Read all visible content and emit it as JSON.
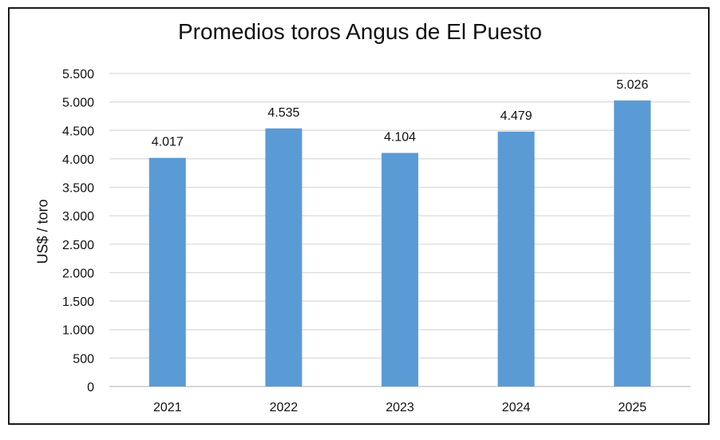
{
  "chart_data": {
    "type": "bar",
    "title": "Promedios toros Angus de El Puesto",
    "xlabel": "",
    "ylabel": "US$ / toro",
    "categories": [
      "2021",
      "2022",
      "2023",
      "2024",
      "2025"
    ],
    "values": [
      4017,
      4535,
      4104,
      4479,
      5026
    ],
    "data_labels": [
      "4.017",
      "4.535",
      "4.104",
      "4.479",
      "5.026"
    ],
    "ylim": [
      0,
      5500
    ],
    "yticks": [
      0,
      500,
      1000,
      1500,
      2000,
      2500,
      3000,
      3500,
      4000,
      4500,
      5000,
      5500
    ],
    "ytick_labels": [
      "0",
      "500",
      "1.000",
      "1.500",
      "2.000",
      "2.500",
      "3.000",
      "3.500",
      "4.000",
      "4.500",
      "5.000",
      "5.500"
    ],
    "grid": true,
    "legend": "none",
    "bar_color": "#5B9BD5",
    "grid_color": "#d9d9d9"
  }
}
